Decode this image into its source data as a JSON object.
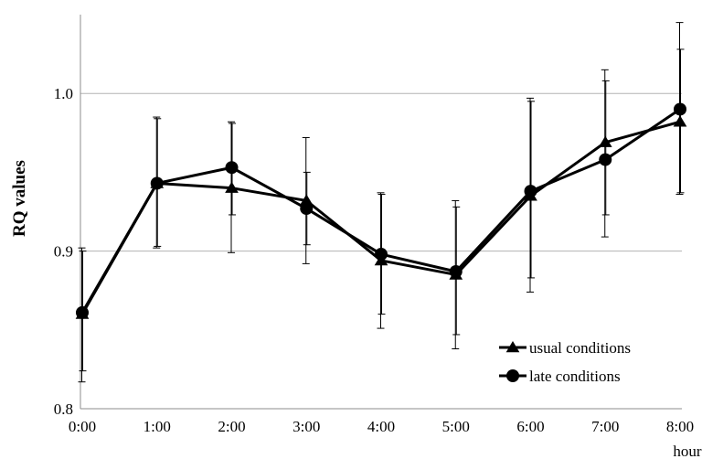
{
  "chart_data": {
    "type": "line",
    "title": "",
    "xlabel": "hour",
    "ylabel": "RQ values",
    "categories": [
      "0:00",
      "1:00",
      "2:00",
      "3:00",
      "4:00",
      "5:00",
      "6:00",
      "7:00",
      "8:00"
    ],
    "ylim": [
      0.8,
      1.05
    ],
    "yticks": [
      "0.8",
      "0.9",
      "1.0"
    ],
    "grid": "horizontal",
    "legend_position": "bottom-right",
    "series": [
      {
        "name": "usual conditions",
        "marker": "triangle",
        "values": [
          0.86,
          0.943,
          0.94,
          0.932,
          0.894,
          0.885,
          0.935,
          0.969,
          0.982
        ],
        "err_lower": [
          0.817,
          0.902,
          0.899,
          0.892,
          0.851,
          0.838,
          0.874,
          0.909,
          0.936
        ],
        "err_upper": [
          0.902,
          0.985,
          0.982,
          0.972,
          0.937,
          0.932,
          0.997,
          1.015,
          1.045
        ]
      },
      {
        "name": "late conditions",
        "marker": "circle",
        "values": [
          0.861,
          0.943,
          0.953,
          0.927,
          0.898,
          0.887,
          0.938,
          0.958,
          0.99
        ],
        "err_lower": [
          0.824,
          0.903,
          0.923,
          0.904,
          0.86,
          0.847,
          0.883,
          0.923,
          0.937
        ],
        "err_upper": [
          0.9,
          0.984,
          0.981,
          0.95,
          0.936,
          0.928,
          0.995,
          1.008,
          1.028
        ]
      }
    ]
  }
}
